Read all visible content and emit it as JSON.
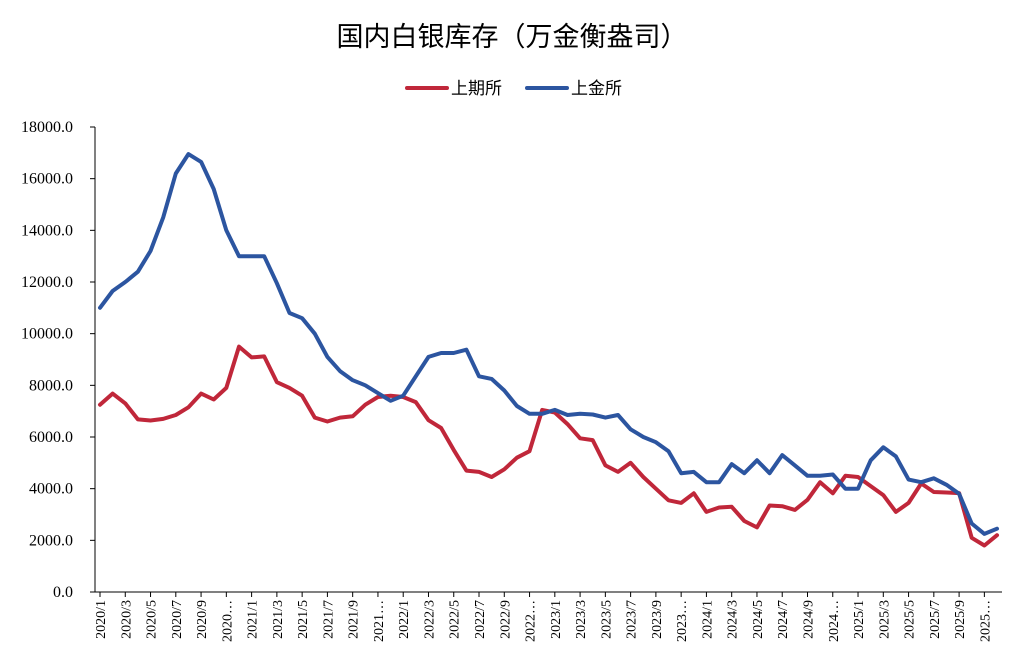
{
  "chart_data": {
    "type": "line",
    "title": "国内白银库存（万金衡盎司）",
    "xlabel": "",
    "ylabel": "",
    "ylim": [
      0,
      18000
    ],
    "yticks": [
      "0.0",
      "2000.0",
      "4000.0",
      "6000.0",
      "8000.0",
      "10000.0",
      "12000.0",
      "14000.0",
      "16000.0",
      "18000.0"
    ],
    "ytick_values": [
      0,
      2000,
      4000,
      6000,
      8000,
      10000,
      12000,
      14000,
      16000,
      18000
    ],
    "grid": false,
    "legend_position": "top-center",
    "x": [
      "2020/1",
      "2020/2",
      "2020/3",
      "2020/4",
      "2020/5",
      "2020/6",
      "2020/7",
      "2020/8",
      "2020/9",
      "2020/10",
      "2020/11",
      "2020/12",
      "2021/1",
      "2021/2",
      "2021/3",
      "2021/4",
      "2021/5",
      "2021/6",
      "2021/7",
      "2021/8",
      "2021/9",
      "2021/10",
      "2021/11",
      "2021/12",
      "2022/1",
      "2022/2",
      "2022/3",
      "2022/4",
      "2022/5",
      "2022/6",
      "2022/7",
      "2022/8",
      "2022/9",
      "2022/10",
      "2022/11",
      "2022/12",
      "2023/1",
      "2023/2",
      "2023/3",
      "2023/4",
      "2023/5",
      "2023/6",
      "2023/7",
      "2023/8",
      "2023/9",
      "2023/10",
      "2023/11",
      "2023/12",
      "2024/1",
      "2024/2",
      "2024/3",
      "2024/4",
      "2024/5",
      "2024/6",
      "2024/7",
      "2024/8",
      "2024/9",
      "2024/10",
      "2024/11",
      "2024/12",
      "2025/1",
      "2025/2",
      "2025/3",
      "2025/4",
      "2025/5",
      "2025/6",
      "2025/7",
      "2025/8",
      "2025/9",
      "2025/10",
      "2025/11",
      "2025/12"
    ],
    "xtick_labels": [
      {
        "index": 0,
        "label": "2020/1"
      },
      {
        "index": 2,
        "label": "2020/3"
      },
      {
        "index": 4,
        "label": "2020/5"
      },
      {
        "index": 6,
        "label": "2020/7"
      },
      {
        "index": 8,
        "label": "2020/9"
      },
      {
        "index": 10,
        "label": "2020…"
      },
      {
        "index": 12,
        "label": "2021/1"
      },
      {
        "index": 14,
        "label": "2021/3"
      },
      {
        "index": 16,
        "label": "2021/5"
      },
      {
        "index": 18,
        "label": "2021/7"
      },
      {
        "index": 20,
        "label": "2021/9"
      },
      {
        "index": 22,
        "label": "2021…"
      },
      {
        "index": 24,
        "label": "2022/1"
      },
      {
        "index": 26,
        "label": "2022/3"
      },
      {
        "index": 28,
        "label": "2022/5"
      },
      {
        "index": 30,
        "label": "2022/7"
      },
      {
        "index": 32,
        "label": "2022/9"
      },
      {
        "index": 34,
        "label": "2022…"
      },
      {
        "index": 36,
        "label": "2023/1"
      },
      {
        "index": 38,
        "label": "2023/3"
      },
      {
        "index": 40,
        "label": "2023/5"
      },
      {
        "index": 42,
        "label": "2023/7"
      },
      {
        "index": 44,
        "label": "2023/9"
      },
      {
        "index": 46,
        "label": "2023…"
      },
      {
        "index": 48,
        "label": "2024/1"
      },
      {
        "index": 50,
        "label": "2024/3"
      },
      {
        "index": 52,
        "label": "2024/5"
      },
      {
        "index": 54,
        "label": "2024/7"
      },
      {
        "index": 56,
        "label": "2024/9"
      },
      {
        "index": 58,
        "label": "2024…"
      },
      {
        "index": 60,
        "label": "2025/1"
      },
      {
        "index": 62,
        "label": "2025/3"
      },
      {
        "index": 64,
        "label": "2025/5"
      },
      {
        "index": 66,
        "label": "2025/7"
      },
      {
        "index": 68,
        "label": "2025/9"
      },
      {
        "index": 70,
        "label": "2025…"
      }
    ],
    "series": [
      {
        "name": "上期所",
        "color": "#c0273a",
        "values": [
          7250,
          7680,
          7300,
          6680,
          6640,
          6700,
          6850,
          7150,
          7680,
          7450,
          7900,
          9500,
          9080,
          9120,
          8120,
          7900,
          7600,
          6750,
          6600,
          6750,
          6800,
          7250,
          7550,
          7600,
          7550,
          7350,
          6650,
          6350,
          5500,
          4700,
          4650,
          4450,
          4750,
          5200,
          5450,
          7050,
          6950,
          6500,
          5950,
          5880,
          4900,
          4650,
          5000,
          4450,
          4000,
          3550,
          3450,
          3820,
          3100,
          3270,
          3300,
          2750,
          2500,
          3350,
          3320,
          3180,
          3570,
          4250,
          3820,
          4500,
          4450,
          4100,
          3750,
          3100,
          3450,
          4200,
          3870,
          3850,
          3830,
          2100,
          1800,
          2200
        ]
      },
      {
        "name": "上金所",
        "color": "#2c55a0",
        "values": [
          11000,
          11650,
          12000,
          12400,
          13200,
          14500,
          16200,
          16950,
          16650,
          15600,
          14000,
          13000,
          13000,
          13000,
          11950,
          10800,
          10600,
          10000,
          9100,
          8550,
          8200,
          8000,
          7700,
          7400,
          7600,
          8350,
          9100,
          9250,
          9250,
          9380,
          8350,
          8250,
          7800,
          7200,
          6900,
          6900,
          7050,
          6850,
          6900,
          6870,
          6750,
          6850,
          6300,
          6000,
          5800,
          5450,
          4600,
          4650,
          4250,
          4250,
          4950,
          4600,
          5100,
          4600,
          5300,
          4900,
          4500,
          4500,
          4550,
          4000,
          4000,
          5100,
          5600,
          5250,
          4350,
          4250,
          4400,
          4150,
          3800,
          2650,
          2250,
          2450
        ]
      }
    ]
  }
}
